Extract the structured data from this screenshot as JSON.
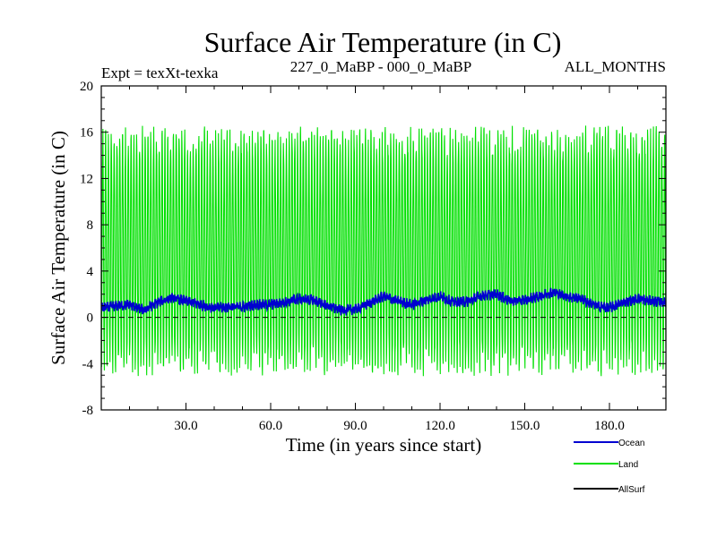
{
  "chart_data": {
    "type": "line",
    "title": "Surface Air Temperature (in C)",
    "subtitle_left": "Expt = texXt-texka",
    "subtitle_center": "227_0_MaBP - 000_0_MaBP",
    "subtitle_right": "ALL_MONTHS",
    "xlabel": "Time (in years since start)",
    "ylabel": "Surface Air Temperature (in C)",
    "xlim": [
      0,
      200
    ],
    "ylim": [
      -8,
      20
    ],
    "xticks": [
      30,
      60,
      90,
      120,
      150,
      180
    ],
    "xtick_labels": [
      "30.0",
      "60.0",
      "90.0",
      "120.0",
      "150.0",
      "180.0"
    ],
    "yticks": [
      -8,
      -4,
      0,
      4,
      8,
      12,
      16,
      20
    ],
    "ytick_labels": [
      "-8",
      "-4",
      "0",
      "4",
      "8",
      "12",
      "16",
      "20"
    ],
    "reference_line": {
      "y": 0,
      "style": "dashed"
    },
    "series": [
      {
        "name": "Land",
        "color": "#00e000",
        "kind": "monthly-seasonal",
        "annual_max_approx": 15.5,
        "annual_min_approx": -4.0,
        "peak_max": 17.2,
        "peak_min": -6.0
      },
      {
        "name": "Ocean",
        "color": "#0000d0",
        "kind": "monthly",
        "anchors_x": [
          0,
          10,
          15,
          20,
          25,
          30,
          35,
          40,
          45,
          50,
          55,
          60,
          65,
          70,
          75,
          80,
          85,
          90,
          95,
          100,
          105,
          110,
          115,
          120,
          125,
          130,
          135,
          140,
          145,
          150,
          155,
          160,
          165,
          170,
          175,
          180,
          185,
          190,
          195,
          200
        ],
        "anchors_y": [
          0.8,
          1.1,
          0.6,
          1.3,
          1.7,
          1.4,
          1.1,
          0.8,
          0.9,
          0.9,
          1.1,
          1.1,
          1.3,
          1.6,
          1.5,
          1.0,
          0.6,
          0.7,
          1.2,
          1.8,
          1.4,
          1.1,
          1.5,
          1.8,
          1.3,
          1.4,
          1.9,
          2.0,
          1.4,
          1.5,
          1.8,
          2.2,
          1.8,
          1.6,
          1.0,
          0.8,
          1.3,
          1.6,
          1.4,
          1.3
        ]
      },
      {
        "name": "AllSurf",
        "color": "#000000",
        "kind": "legend-only"
      }
    ],
    "legend": {
      "placement": "bottom-right",
      "entries": [
        "Ocean",
        "Land",
        "AllSurf"
      ]
    }
  }
}
